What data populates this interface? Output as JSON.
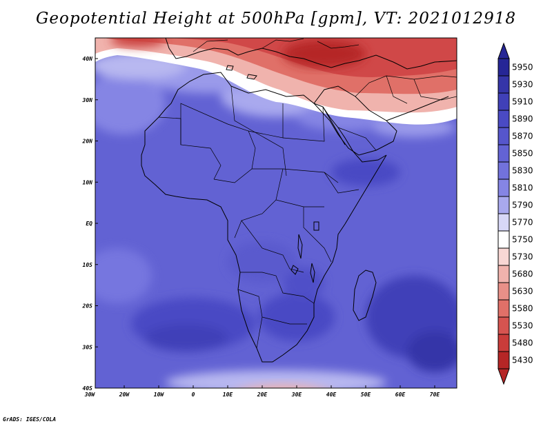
{
  "title": "Geopotential Height at 500hPa [gpm], VT: 2021012918",
  "credit": "GrADS: IGES/COLA",
  "lon_labels": [
    "30W",
    "20W",
    "10W",
    "0",
    "10E",
    "20E",
    "30E",
    "40E",
    "50E",
    "60E",
    "70E"
  ],
  "lat_labels": [
    "40N",
    "30N",
    "20N",
    "10N",
    "EQ",
    "10S",
    "20S",
    "30S",
    "40S"
  ],
  "colorbar": {
    "levels": [
      {
        "label": "5950",
        "color": "#262696"
      },
      {
        "label": "5930",
        "color": "#3535a8"
      },
      {
        "label": "5910",
        "color": "#4040b8"
      },
      {
        "label": "5890",
        "color": "#4a4ac4"
      },
      {
        "label": "5870",
        "color": "#5656cc"
      },
      {
        "label": "5850",
        "color": "#6363d4"
      },
      {
        "label": "5830",
        "color": "#7272dc"
      },
      {
        "label": "5810",
        "color": "#8585e4"
      },
      {
        "label": "5790",
        "color": "#a9a9ee"
      },
      {
        "label": "5770",
        "color": "#d8d8f7"
      },
      {
        "label": "5750",
        "color": "#ffffff"
      },
      {
        "label": "5730",
        "color": "#f8d7d4"
      },
      {
        "label": "5680",
        "color": "#f0b3ad"
      },
      {
        "label": "5630",
        "color": "#e89088"
      },
      {
        "label": "5580",
        "color": "#e07068"
      },
      {
        "label": "5530",
        "color": "#d65450"
      },
      {
        "label": "5480",
        "color": "#c93c3a"
      },
      {
        "label": "5430",
        "color": "#b52626"
      }
    ],
    "under_color": "#b52626"
  }
}
